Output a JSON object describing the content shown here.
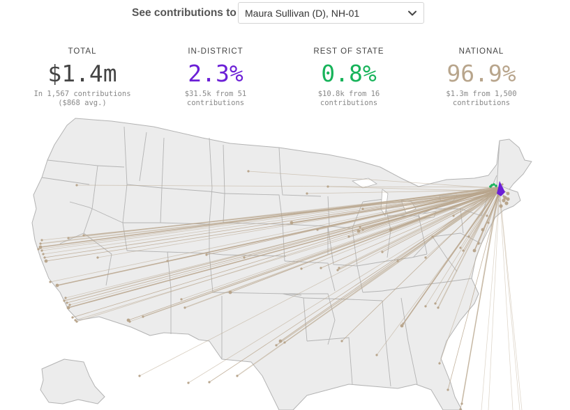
{
  "selector": {
    "label": "See contributions to",
    "selected": "Maura Sullivan (D), NH-01",
    "chevron_icon": "chevron-down-icon"
  },
  "stats": [
    {
      "key": "total",
      "title": "TOTAL",
      "value": "$1.4m",
      "sub_line1": "In 1,567 contributions",
      "sub_line2": "($868 avg.)",
      "color": "#444444"
    },
    {
      "key": "in-district",
      "title": "IN-DISTRICT",
      "value": "2.3%",
      "sub_line1": "$31.5k from 51",
      "sub_line2": "contributions",
      "color": "#6b1fd6"
    },
    {
      "key": "rest-of-state",
      "title": "REST OF STATE",
      "value": "0.8%",
      "sub_line1": "$10.8k from 16",
      "sub_line2": "contributions",
      "color": "#17b35a"
    },
    {
      "key": "national",
      "title": "NATIONAL",
      "value": "96.9%",
      "sub_line1": "$1.3m from 1,500",
      "sub_line2": "contributions",
      "color": "#b8a58c"
    }
  ],
  "map": {
    "land_color": "#ececec",
    "border_color": "#b3b3b3",
    "flow_color": "#b8a58c",
    "in_district_color": "#6b1fd6",
    "rest_of_state_color": "#17b35a"
  }
}
